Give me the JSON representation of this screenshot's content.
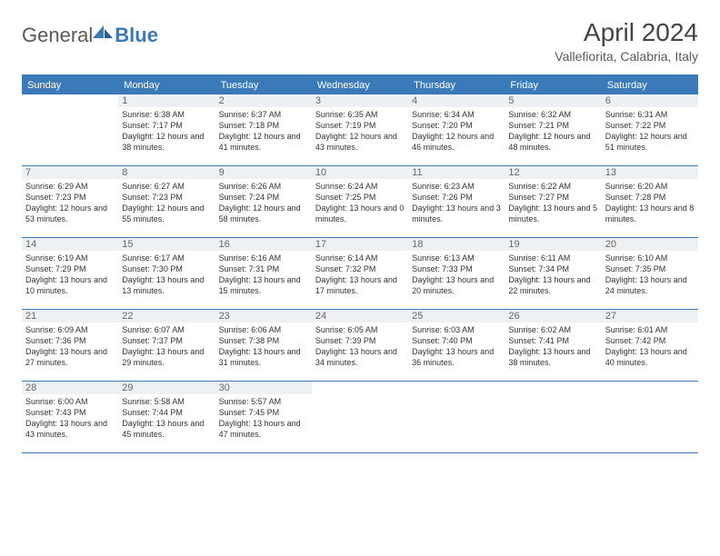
{
  "logo": {
    "part1": "General",
    "part2": "Blue"
  },
  "title": "April 2024",
  "location": "Vallefiorita, Calabria, Italy",
  "colors": {
    "header_bg": "#3a7ab8",
    "header_text": "#ffffff",
    "daynum_bg": "#eef1f3",
    "text": "#333333",
    "logo_gray": "#5a5a5a",
    "logo_blue": "#3a7ab8"
  },
  "day_headers": [
    "Sunday",
    "Monday",
    "Tuesday",
    "Wednesday",
    "Thursday",
    "Friday",
    "Saturday"
  ],
  "weeks": [
    [
      {
        "n": "",
        "sr": "",
        "ss": "",
        "dl": ""
      },
      {
        "n": "1",
        "sr": "6:38 AM",
        "ss": "7:17 PM",
        "dl": "12 hours and 38 minutes."
      },
      {
        "n": "2",
        "sr": "6:37 AM",
        "ss": "7:18 PM",
        "dl": "12 hours and 41 minutes."
      },
      {
        "n": "3",
        "sr": "6:35 AM",
        "ss": "7:19 PM",
        "dl": "12 hours and 43 minutes."
      },
      {
        "n": "4",
        "sr": "6:34 AM",
        "ss": "7:20 PM",
        "dl": "12 hours and 46 minutes."
      },
      {
        "n": "5",
        "sr": "6:32 AM",
        "ss": "7:21 PM",
        "dl": "12 hours and 48 minutes."
      },
      {
        "n": "6",
        "sr": "6:31 AM",
        "ss": "7:22 PM",
        "dl": "12 hours and 51 minutes."
      }
    ],
    [
      {
        "n": "7",
        "sr": "6:29 AM",
        "ss": "7:23 PM",
        "dl": "12 hours and 53 minutes."
      },
      {
        "n": "8",
        "sr": "6:27 AM",
        "ss": "7:23 PM",
        "dl": "12 hours and 55 minutes."
      },
      {
        "n": "9",
        "sr": "6:26 AM",
        "ss": "7:24 PM",
        "dl": "12 hours and 58 minutes."
      },
      {
        "n": "10",
        "sr": "6:24 AM",
        "ss": "7:25 PM",
        "dl": "13 hours and 0 minutes."
      },
      {
        "n": "11",
        "sr": "6:23 AM",
        "ss": "7:26 PM",
        "dl": "13 hours and 3 minutes."
      },
      {
        "n": "12",
        "sr": "6:22 AM",
        "ss": "7:27 PM",
        "dl": "13 hours and 5 minutes."
      },
      {
        "n": "13",
        "sr": "6:20 AM",
        "ss": "7:28 PM",
        "dl": "13 hours and 8 minutes."
      }
    ],
    [
      {
        "n": "14",
        "sr": "6:19 AM",
        "ss": "7:29 PM",
        "dl": "13 hours and 10 minutes."
      },
      {
        "n": "15",
        "sr": "6:17 AM",
        "ss": "7:30 PM",
        "dl": "13 hours and 13 minutes."
      },
      {
        "n": "16",
        "sr": "6:16 AM",
        "ss": "7:31 PM",
        "dl": "13 hours and 15 minutes."
      },
      {
        "n": "17",
        "sr": "6:14 AM",
        "ss": "7:32 PM",
        "dl": "13 hours and 17 minutes."
      },
      {
        "n": "18",
        "sr": "6:13 AM",
        "ss": "7:33 PM",
        "dl": "13 hours and 20 minutes."
      },
      {
        "n": "19",
        "sr": "6:11 AM",
        "ss": "7:34 PM",
        "dl": "13 hours and 22 minutes."
      },
      {
        "n": "20",
        "sr": "6:10 AM",
        "ss": "7:35 PM",
        "dl": "13 hours and 24 minutes."
      }
    ],
    [
      {
        "n": "21",
        "sr": "6:09 AM",
        "ss": "7:36 PM",
        "dl": "13 hours and 27 minutes."
      },
      {
        "n": "22",
        "sr": "6:07 AM",
        "ss": "7:37 PM",
        "dl": "13 hours and 29 minutes."
      },
      {
        "n": "23",
        "sr": "6:06 AM",
        "ss": "7:38 PM",
        "dl": "13 hours and 31 minutes."
      },
      {
        "n": "24",
        "sr": "6:05 AM",
        "ss": "7:39 PM",
        "dl": "13 hours and 34 minutes."
      },
      {
        "n": "25",
        "sr": "6:03 AM",
        "ss": "7:40 PM",
        "dl": "13 hours and 36 minutes."
      },
      {
        "n": "26",
        "sr": "6:02 AM",
        "ss": "7:41 PM",
        "dl": "13 hours and 38 minutes."
      },
      {
        "n": "27",
        "sr": "6:01 AM",
        "ss": "7:42 PM",
        "dl": "13 hours and 40 minutes."
      }
    ],
    [
      {
        "n": "28",
        "sr": "6:00 AM",
        "ss": "7:43 PM",
        "dl": "13 hours and 43 minutes."
      },
      {
        "n": "29",
        "sr": "5:58 AM",
        "ss": "7:44 PM",
        "dl": "13 hours and 45 minutes."
      },
      {
        "n": "30",
        "sr": "5:57 AM",
        "ss": "7:45 PM",
        "dl": "13 hours and 47 minutes."
      },
      {
        "n": "",
        "sr": "",
        "ss": "",
        "dl": ""
      },
      {
        "n": "",
        "sr": "",
        "ss": "",
        "dl": ""
      },
      {
        "n": "",
        "sr": "",
        "ss": "",
        "dl": ""
      },
      {
        "n": "",
        "sr": "",
        "ss": "",
        "dl": ""
      }
    ]
  ],
  "labels": {
    "sunrise": "Sunrise:",
    "sunset": "Sunset:",
    "daylight": "Daylight:"
  }
}
